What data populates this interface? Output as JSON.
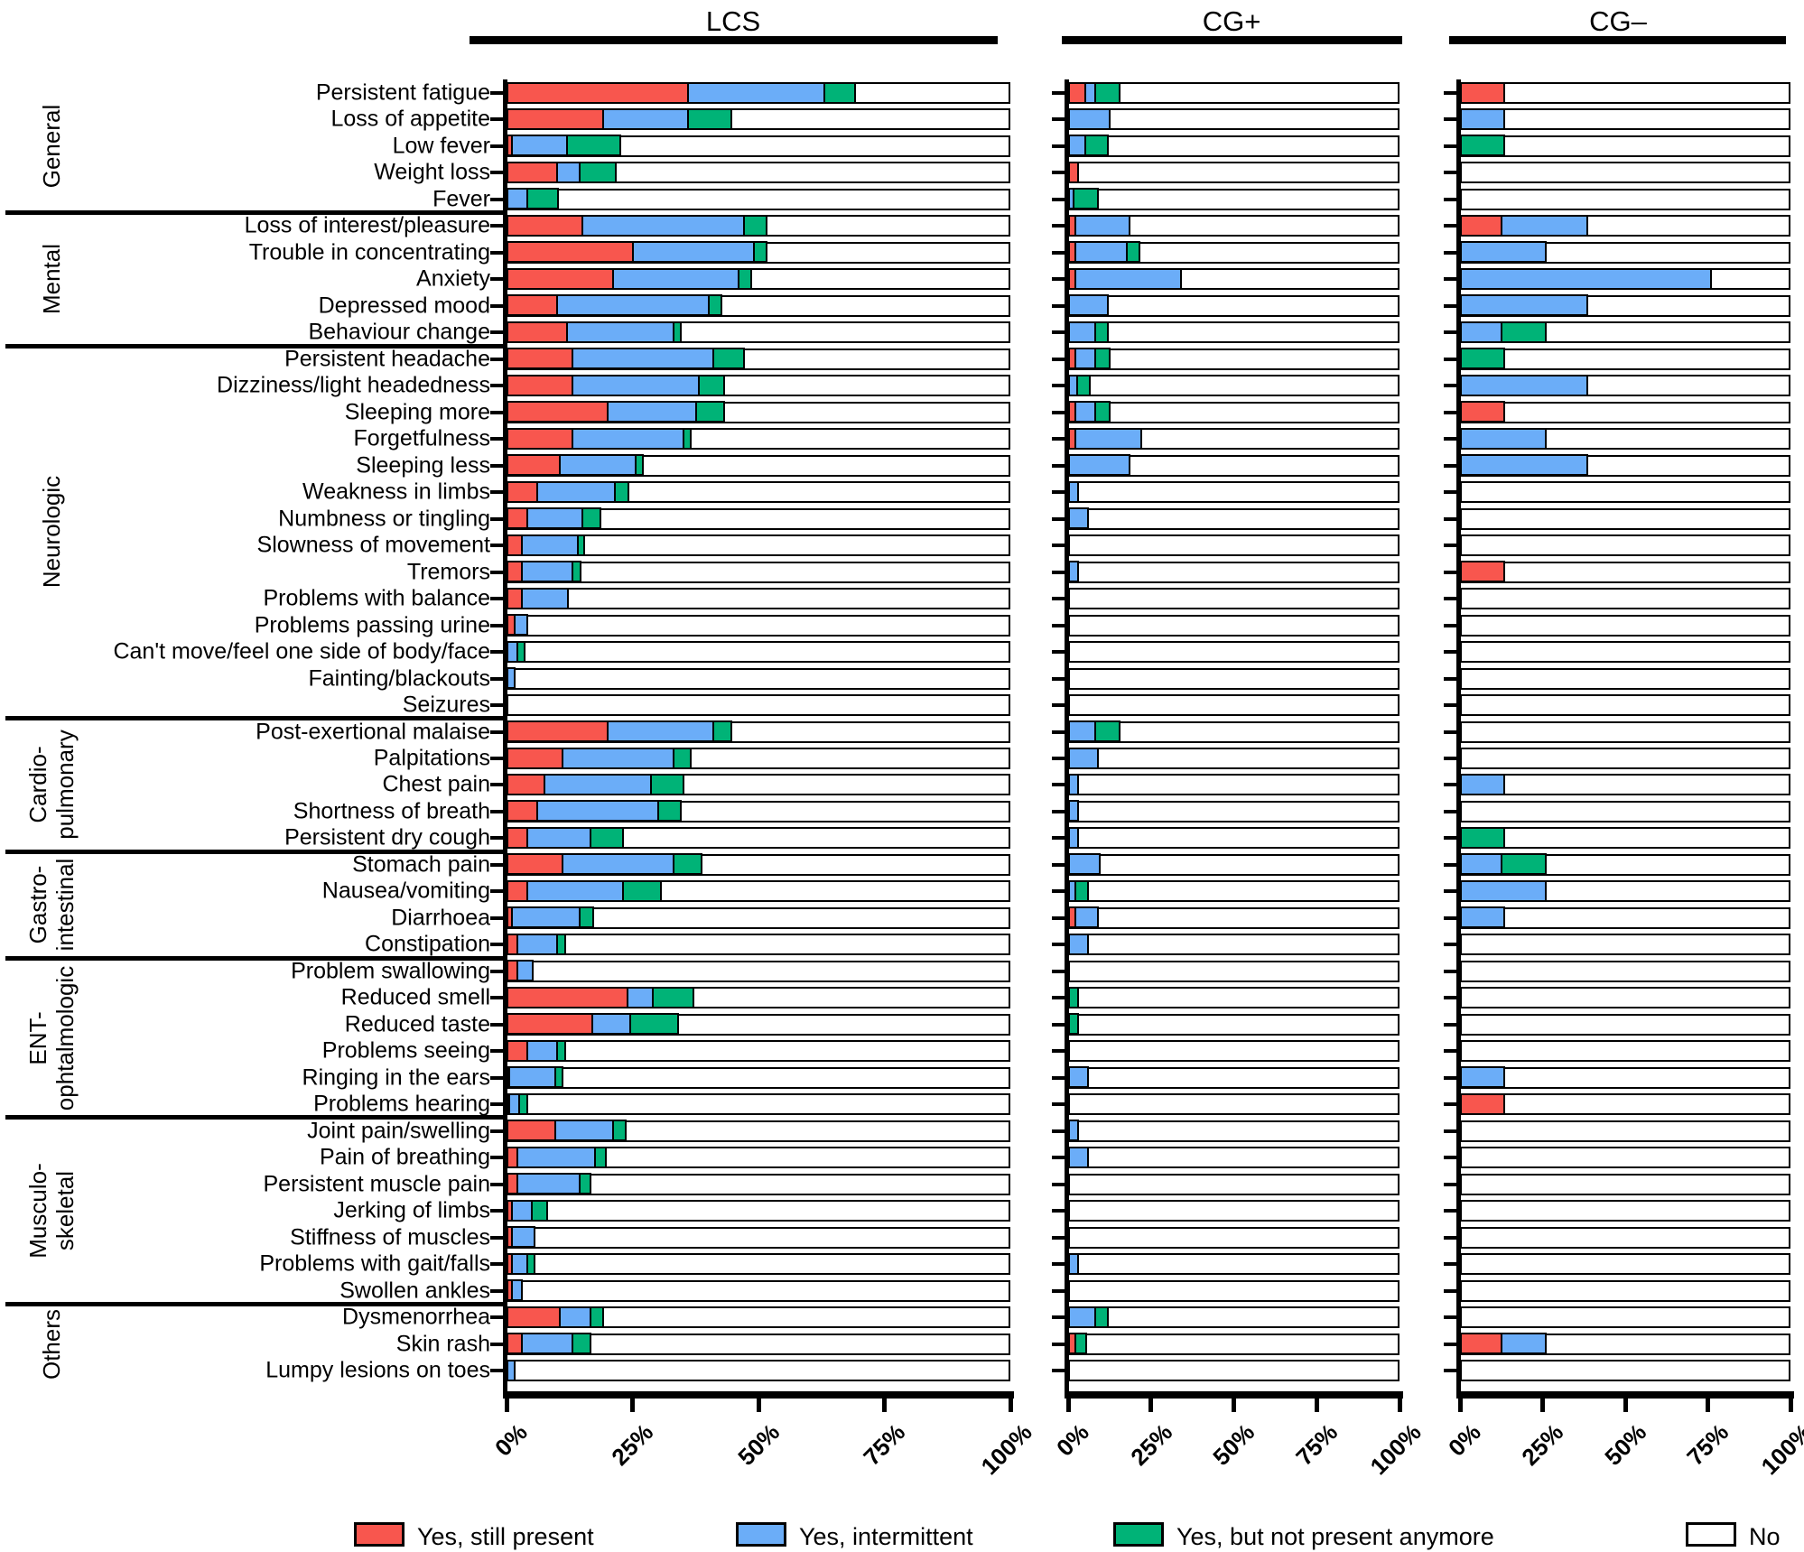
{
  "panels": [
    {
      "key": "lcs",
      "label": "LCS"
    },
    {
      "key": "cgp",
      "label": "CG+"
    },
    {
      "key": "cgn",
      "label": "CG–"
    }
  ],
  "legend": {
    "items": [
      {
        "label": "Yes, still present",
        "color": "#f8564e"
      },
      {
        "label": "Yes, intermittent",
        "color": "#6badf8"
      },
      {
        "label": "Yes, but not present anymore",
        "color": "#00b377"
      },
      {
        "label": "No",
        "color": "#ffffff"
      }
    ]
  },
  "chart_data": {
    "type": "bar",
    "orientation": "horizontal",
    "stacked": true,
    "unit": "percent",
    "xlim": [
      0,
      100
    ],
    "x_ticks": [
      "0%",
      "25%",
      "50%",
      "75%",
      "100%"
    ],
    "series_order": [
      "Yes, still present",
      "Yes, intermittent",
      "Yes, but not present anymore",
      "No (remainder to 100%)"
    ],
    "colors": {
      "still_present": "#f8564e",
      "intermittent": "#6badf8",
      "not_anymore": "#00b377",
      "no": "#ffffff"
    },
    "panel_labels": [
      "LCS",
      "CG+",
      "CG–"
    ],
    "groups": [
      {
        "name": "General",
        "rows": [
          {
            "label": "Persistent fatigue",
            "lcs": [
              36,
              27,
              5.5
            ],
            "cgp": [
              5,
              3,
              6.5
            ],
            "cgn": [
              12.5,
              0,
              0
            ]
          },
          {
            "label": "Loss of appetite",
            "lcs": [
              19,
              17,
              8
            ],
            "cgp": [
              0,
              11.5,
              0
            ],
            "cgn": [
              0,
              12.5,
              0
            ]
          },
          {
            "label": "Low fever",
            "lcs": [
              1,
              11,
              10
            ],
            "cgp": [
              0,
              5,
              6
            ],
            "cgn": [
              0,
              0,
              12.5
            ]
          },
          {
            "label": "Weight loss",
            "lcs": [
              10,
              4.5,
              6.5
            ],
            "cgp": [
              2,
              0,
              0
            ],
            "cgn": [
              0,
              0,
              0
            ]
          },
          {
            "label": "Fever",
            "lcs": [
              0,
              4,
              5.5
            ],
            "cgp": [
              0,
              1.5,
              6.5
            ],
            "cgn": [
              0,
              0,
              0
            ]
          }
        ]
      },
      {
        "name": "Mental",
        "rows": [
          {
            "label": "Loss of interest/pleasure",
            "lcs": [
              15,
              32,
              4
            ],
            "cgp": [
              2,
              15.5,
              0
            ],
            "cgn": [
              12.5,
              25,
              0
            ]
          },
          {
            "label": "Trouble in concentrating",
            "lcs": [
              25,
              24,
              2
            ],
            "cgp": [
              2,
              15.5,
              3
            ],
            "cgn": [
              0,
              25,
              0
            ]
          },
          {
            "label": "Anxiety",
            "lcs": [
              21,
              25,
              2
            ],
            "cgp": [
              2,
              31,
              0
            ],
            "cgn": [
              0,
              75,
              0
            ]
          },
          {
            "label": "Depressed mood",
            "lcs": [
              10,
              30,
              2
            ],
            "cgp": [
              0,
              11,
              0
            ],
            "cgn": [
              0,
              37.5,
              0
            ]
          },
          {
            "label": "Behaviour change",
            "lcs": [
              12,
              21,
              1
            ],
            "cgp": [
              0,
              8,
              3
            ],
            "cgn": [
              0,
              12.5,
              12.5
            ]
          }
        ]
      },
      {
        "name": "Neurologic",
        "rows": [
          {
            "label": "Persistent headache",
            "lcs": [
              13,
              28,
              5.5
            ],
            "cgp": [
              2,
              6,
              3.5
            ],
            "cgn": [
              0,
              0,
              12.5
            ]
          },
          {
            "label": "Dizziness/light headedness",
            "lcs": [
              13,
              25,
              4.5
            ],
            "cgp": [
              0,
              2.5,
              3
            ],
            "cgn": [
              0,
              37.5,
              0
            ]
          },
          {
            "label": "Sleeping more",
            "lcs": [
              20,
              17.5,
              5
            ],
            "cgp": [
              2,
              6,
              3.5
            ],
            "cgn": [
              12.5,
              0,
              0
            ]
          },
          {
            "label": "Forgetfulness",
            "lcs": [
              13,
              22,
              1
            ],
            "cgp": [
              2,
              19,
              0
            ],
            "cgn": [
              0,
              25,
              0
            ]
          },
          {
            "label": "Sleeping less",
            "lcs": [
              10.5,
              15,
              1
            ],
            "cgp": [
              0,
              17.5,
              0
            ],
            "cgn": [
              0,
              37.5,
              0
            ]
          },
          {
            "label": "Weakness in limbs",
            "lcs": [
              6,
              15.5,
              2
            ],
            "cgp": [
              0,
              2,
              0
            ],
            "cgn": [
              0,
              0,
              0
            ]
          },
          {
            "label": "Numbness or tingling",
            "lcs": [
              4,
              11,
              3
            ],
            "cgp": [
              0,
              5,
              0
            ],
            "cgn": [
              0,
              0,
              0
            ]
          },
          {
            "label": "Slowness of movement",
            "lcs": [
              3,
              11,
              0.7
            ],
            "cgp": [
              0,
              0,
              0
            ],
            "cgn": [
              0,
              0,
              0
            ]
          },
          {
            "label": "Tremors",
            "lcs": [
              3,
              10,
              1
            ],
            "cgp": [
              0,
              2,
              0
            ],
            "cgn": [
              12.5,
              0,
              0
            ]
          },
          {
            "label": "Problems with balance",
            "lcs": [
              3,
              8.5,
              0
            ],
            "cgp": [
              0,
              0,
              0
            ],
            "cgn": [
              0,
              0,
              0
            ]
          },
          {
            "label": "Problems passing urine",
            "lcs": [
              1.5,
              2,
              0
            ],
            "cgp": [
              0,
              0,
              0
            ],
            "cgn": [
              0,
              0,
              0
            ]
          },
          {
            "label": "Can't move/feel one side of body/face",
            "lcs": [
              0,
              2,
              1
            ],
            "cgp": [
              0,
              0,
              0
            ],
            "cgn": [
              0,
              0,
              0
            ]
          },
          {
            "label": "Fainting/blackouts",
            "lcs": [
              0,
              1,
              0
            ],
            "cgp": [
              0,
              0,
              0
            ],
            "cgn": [
              0,
              0,
              0
            ]
          },
          {
            "label": "Seizures",
            "lcs": [
              0,
              0,
              0
            ],
            "cgp": [
              0,
              0,
              0
            ],
            "cgn": [
              0,
              0,
              0
            ]
          }
        ]
      },
      {
        "name": "Cardio-\npulmonary",
        "rows": [
          {
            "label": "Post-exertional malaise",
            "lcs": [
              20,
              21,
              3
            ],
            "cgp": [
              0,
              8,
              6.5
            ],
            "cgn": [
              0,
              0,
              0
            ]
          },
          {
            "label": "Palpitations",
            "lcs": [
              11,
              22,
              3
            ],
            "cgp": [
              0,
              8,
              0
            ],
            "cgn": [
              0,
              0,
              0
            ]
          },
          {
            "label": "Chest pain",
            "lcs": [
              7.5,
              21,
              6
            ],
            "cgp": [
              0,
              2,
              0
            ],
            "cgn": [
              0,
              12.5,
              0
            ]
          },
          {
            "label": "Shortness of breath",
            "lcs": [
              6,
              24,
              4
            ],
            "cgp": [
              0,
              2,
              0
            ],
            "cgn": [
              0,
              0,
              0
            ]
          },
          {
            "label": "Persistent dry cough",
            "lcs": [
              4,
              12.5,
              6
            ],
            "cgp": [
              0,
              2,
              0
            ],
            "cgn": [
              0,
              0,
              12.5
            ]
          }
        ]
      },
      {
        "name": "Gastro-\nintestinal",
        "rows": [
          {
            "label": "Stomach pain",
            "lcs": [
              11,
              22,
              5
            ],
            "cgp": [
              0,
              8.5,
              0
            ],
            "cgn": [
              0,
              12.5,
              12.5
            ]
          },
          {
            "label": "Nausea/vomiting",
            "lcs": [
              4,
              19,
              7
            ],
            "cgp": [
              0,
              2,
              3
            ],
            "cgn": [
              0,
              25,
              0
            ]
          },
          {
            "label": "Diarrhoea",
            "lcs": [
              1,
              13.5,
              2
            ],
            "cgp": [
              2,
              6,
              0
            ],
            "cgn": [
              0,
              12.5,
              0
            ]
          },
          {
            "label": "Constipation",
            "lcs": [
              2,
              8,
              1
            ],
            "cgp": [
              0,
              5,
              0
            ],
            "cgn": [
              0,
              0,
              0
            ]
          }
        ]
      },
      {
        "name": "ENT-\nophtalmologic",
        "rows": [
          {
            "label": "Problem swallowing",
            "lcs": [
              2,
              2.5,
              0
            ],
            "cgp": [
              0,
              0,
              0
            ],
            "cgn": [
              0,
              0,
              0
            ]
          },
          {
            "label": "Reduced smell",
            "lcs": [
              24,
              5,
              7.5
            ],
            "cgp": [
              0,
              0,
              2
            ],
            "cgn": [
              0,
              0,
              0
            ]
          },
          {
            "label": "Reduced taste",
            "lcs": [
              17,
              7.5,
              9
            ],
            "cgp": [
              0,
              0,
              2
            ],
            "cgn": [
              0,
              0,
              0
            ]
          },
          {
            "label": "Problems seeing",
            "lcs": [
              4,
              6,
              1
            ],
            "cgp": [
              0,
              0,
              0
            ],
            "cgn": [
              0,
              0,
              0
            ]
          },
          {
            "label": "Ringing in the ears",
            "lcs": [
              0.5,
              9,
              1
            ],
            "cgp": [
              0,
              5,
              0
            ],
            "cgn": [
              0,
              12.5,
              0
            ]
          },
          {
            "label": "Problems hearing",
            "lcs": [
              0.5,
              2,
              1
            ],
            "cgp": [
              0,
              0,
              0
            ],
            "cgn": [
              12.5,
              0,
              0
            ]
          }
        ]
      },
      {
        "name": "Musculo-\nskeletal",
        "rows": [
          {
            "label": "Joint pain/swelling",
            "lcs": [
              9.5,
              11.5,
              2
            ],
            "cgp": [
              0,
              2,
              0
            ],
            "cgn": [
              0,
              0,
              0
            ]
          },
          {
            "label": "Pain of breathing",
            "lcs": [
              2,
              15.5,
              1.5
            ],
            "cgp": [
              0,
              5,
              0
            ],
            "cgn": [
              0,
              0,
              0
            ]
          },
          {
            "label": "Persistent muscle pain",
            "lcs": [
              2,
              12.5,
              1.5
            ],
            "cgp": [
              0,
              0,
              0
            ],
            "cgn": [
              0,
              0,
              0
            ]
          },
          {
            "label": "Jerking of limbs",
            "lcs": [
              1,
              4,
              2.5
            ],
            "cgp": [
              0,
              0,
              0
            ],
            "cgn": [
              0,
              0,
              0
            ]
          },
          {
            "label": "Stiffness of muscles",
            "lcs": [
              1,
              4,
              0
            ],
            "cgp": [
              0,
              0,
              0
            ],
            "cgn": [
              0,
              0,
              0
            ]
          },
          {
            "label": "Problems with gait/falls",
            "lcs": [
              1,
              3,
              1
            ],
            "cgp": [
              0,
              2,
              0
            ],
            "cgn": [
              0,
              0,
              0
            ]
          },
          {
            "label": "Swollen ankles",
            "lcs": [
              1,
              1.5,
              0
            ],
            "cgp": [
              0,
              0,
              0
            ],
            "cgn": [
              0,
              0,
              0
            ]
          }
        ]
      },
      {
        "name": "Others",
        "rows": [
          {
            "label": "Dysmenorrhea",
            "lcs": [
              10.5,
              6,
              2
            ],
            "cgp": [
              0,
              8,
              3
            ],
            "cgn": [
              0,
              0,
              0
            ]
          },
          {
            "label": "Skin rash",
            "lcs": [
              3,
              10,
              3
            ],
            "cgp": [
              2,
              0,
              2.5
            ],
            "cgn": [
              12.5,
              12.5,
              0
            ]
          },
          {
            "label": "Lumpy lesions on toes",
            "lcs": [
              0,
              1,
              0
            ],
            "cgp": [
              0,
              0,
              0
            ],
            "cgn": [
              0,
              0,
              0
            ]
          }
        ]
      }
    ]
  }
}
